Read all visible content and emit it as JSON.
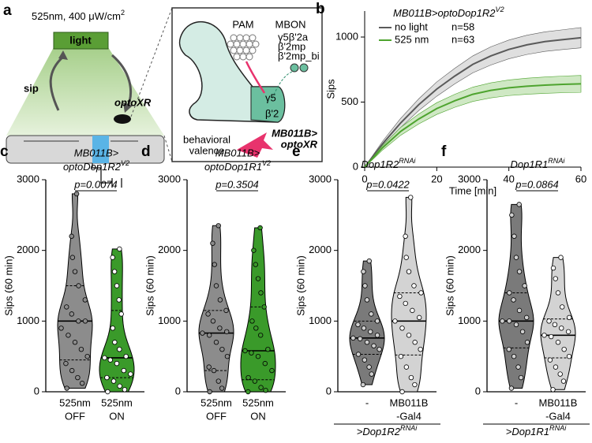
{
  "diagram": {
    "label": "a",
    "light_spec": "525nm, 400 μW/cm",
    "light_spec_sup": "2",
    "light": "light",
    "sip": "sip",
    "optoxr": "optoXR",
    "pam": "PAM",
    "mbon": "MBON",
    "mbon_types": [
      "γ5β'2a",
      "β'2mp",
      "β'2mp_bi"
    ],
    "compartments": [
      "γ5",
      "β'2"
    ],
    "valence": [
      "behavioral",
      "valence"
    ],
    "driver": [
      "MB011B>",
      "optoXR"
    ]
  },
  "chart_data": [
    {
      "type": "line",
      "panel": "b",
      "title": "MB011B>optoDop1R2",
      "title_sup": "V2",
      "xlabel": "Time [min]",
      "ylabel": "Sips",
      "x": [
        0,
        5,
        10,
        15,
        20,
        25,
        30,
        35,
        40,
        45,
        50,
        55,
        60
      ],
      "xlim": [
        0,
        60
      ],
      "xticks": [
        0,
        20,
        40,
        60
      ],
      "ylim": [
        0,
        1200
      ],
      "yticks": [
        0,
        500,
        1000
      ],
      "series": [
        {
          "name": "no light",
          "n_label": "n=58",
          "color": "#5a5a5a",
          "band_color": "#d4d4d4",
          "values": [
            0,
            180,
            340,
            480,
            600,
            700,
            790,
            855,
            905,
            940,
            965,
            980,
            995
          ],
          "errors": [
            0,
            20,
            35,
            45,
            55,
            60,
            65,
            70,
            72,
            74,
            75,
            76,
            78
          ]
        },
        {
          "name": "525 nm",
          "n_label": "n=63",
          "color": "#4ea42f",
          "band_color": "#bfe0b0",
          "values": [
            0,
            150,
            275,
            370,
            450,
            510,
            560,
            590,
            610,
            622,
            630,
            636,
            640
          ],
          "errors": [
            0,
            18,
            30,
            38,
            45,
            50,
            55,
            58,
            60,
            62,
            63,
            64,
            65
          ]
        }
      ]
    },
    {
      "type": "violin",
      "panel": "c",
      "title": [
        "MB011B>",
        "optoDop1R2"
      ],
      "title_sup": "V2",
      "ylabel": "Sips (60 min)",
      "ylim": [
        0,
        3000
      ],
      "yticks": [
        0,
        1000,
        2000,
        3000
      ],
      "annotation": "p=0.0074",
      "series": [
        {
          "name": [
            "525nm",
            "OFF"
          ],
          "color": "#8c8c8c",
          "dot_color": "#8c8c8c",
          "label_color": "#000000",
          "median": 1000,
          "q1": 450,
          "q3": 1500,
          "values": [
            50,
            120,
            200,
            300,
            400,
            500,
            600,
            700,
            800,
            900,
            1000,
            1000,
            1100,
            1200,
            1300,
            1500,
            1700,
            1900,
            2200,
            2800
          ]
        },
        {
          "name": [
            "525nm",
            "ON"
          ],
          "color": "#3a9a2a",
          "dot_color": "#ffffff",
          "label_color": "#3a9a2a",
          "median": 480,
          "q1": 200,
          "q3": 1150,
          "values": [
            0,
            30,
            80,
            150,
            200,
            250,
            300,
            400,
            450,
            480,
            500,
            600,
            700,
            900,
            1100,
            1300,
            1500,
            1700,
            1900,
            2020
          ]
        }
      ]
    },
    {
      "type": "violin",
      "panel": "d",
      "title": [
        "MB011B>",
        "optoDop1R1"
      ],
      "title_sup": "V2",
      "ylabel": "Sips (60 min)",
      "ylim": [
        0,
        3000
      ],
      "yticks": [
        0,
        1000,
        2000,
        3000
      ],
      "annotation": "p=0.3504",
      "series": [
        {
          "name": [
            "525nm",
            "OFF"
          ],
          "color": "#8c8c8c",
          "dot_color": "#8c8c8c",
          "label_color": "#000000",
          "median": 830,
          "q1": 300,
          "q3": 1150,
          "values": [
            0,
            50,
            150,
            300,
            350,
            500,
            600,
            700,
            800,
            830,
            850,
            900,
            1000,
            1100,
            1150,
            1300,
            1500,
            1800,
            2100,
            2350
          ]
        },
        {
          "name": [
            "525nm",
            "ON"
          ],
          "color": "#3a9a2a",
          "dot_color": "#3a9a2a",
          "label_color": "#3a9a2a",
          "median": 580,
          "q1": 170,
          "q3": 1200,
          "values": [
            0,
            20,
            60,
            150,
            200,
            300,
            400,
            500,
            550,
            580,
            600,
            800,
            900,
            1000,
            1200,
            1400,
            1600,
            1800,
            2000,
            2320
          ]
        }
      ]
    },
    {
      "type": "violin",
      "panel": "e",
      "title": [
        "Dop1R2"
      ],
      "title_sup": "RNAi",
      "ylabel": "Sips (60 min)",
      "ylim": [
        0,
        3000
      ],
      "yticks": [
        0,
        1000,
        2000,
        3000
      ],
      "annotation": "p=0.0422",
      "group_label": ">Dop1R2",
      "group_label_sup": "RNAi",
      "series": [
        {
          "name": [
            "-"
          ],
          "color": "#7a7a7a",
          "dot_color": "#cfcfcf",
          "label_color": "#000000",
          "median": 760,
          "q1": 530,
          "q3": 1000,
          "values": [
            100,
            250,
            350,
            450,
            530,
            600,
            650,
            700,
            750,
            760,
            800,
            850,
            900,
            950,
            1000,
            1100,
            1300,
            1500,
            1700,
            1850
          ]
        },
        {
          "name": [
            "MB011B",
            "-Gal4"
          ],
          "color": "#d3d3d3",
          "dot_color": "#ffffff",
          "label_color": "#000000",
          "median": 1000,
          "q1": 520,
          "q3": 1400,
          "values": [
            0,
            100,
            200,
            350,
            500,
            600,
            700,
            800,
            900,
            1000,
            1050,
            1150,
            1250,
            1350,
            1400,
            1500,
            1700,
            1900,
            2200,
            2750
          ]
        }
      ]
    },
    {
      "type": "violin",
      "panel": "f",
      "title": [
        "Dop1R1"
      ],
      "title_sup": "RNAi",
      "ylabel": "Sips (60 min)",
      "ylim": [
        0,
        3000
      ],
      "yticks": [
        0,
        1000,
        2000,
        3000
      ],
      "annotation": "p=0.0864",
      "group_label": ">Dop1R1",
      "group_label_sup": "RNAi",
      "series": [
        {
          "name": [
            "-"
          ],
          "color": "#7a7a7a",
          "dot_color": "#cfcfcf",
          "label_color": "#000000",
          "median": 1000,
          "q1": 620,
          "q3": 1400,
          "values": [
            50,
            200,
            350,
            500,
            600,
            700,
            850,
            950,
            1000,
            1000,
            1050,
            1150,
            1300,
            1400,
            1500,
            1700,
            1900,
            2200,
            2500,
            2650
          ]
        },
        {
          "name": [
            "MB011B",
            "-Gal4"
          ],
          "color": "#d3d3d3",
          "dot_color": "#ffffff",
          "label_color": "#000000",
          "median": 800,
          "q1": 480,
          "q3": 1030,
          "values": [
            30,
            150,
            250,
            350,
            450,
            500,
            600,
            700,
            780,
            800,
            850,
            900,
            950,
            1000,
            1050,
            1200,
            1400,
            1600,
            1750,
            1900
          ]
        }
      ]
    }
  ]
}
